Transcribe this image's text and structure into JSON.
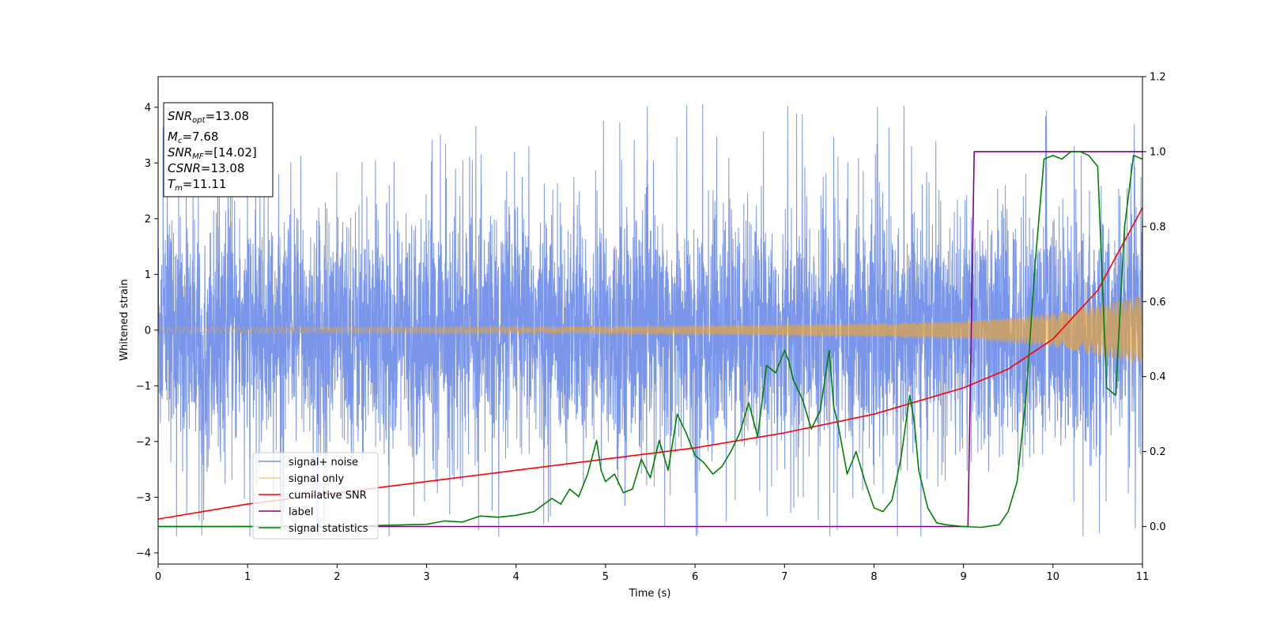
{
  "chart_data": {
    "type": "line",
    "xlabel": "Time (s)",
    "ylabel": "Whitened strain",
    "xlim": [
      0,
      11
    ],
    "ylim": [
      -4.2,
      4.55
    ],
    "ylim_right": [
      -0.1,
      1.2
    ],
    "grid": false,
    "legend_position": "lower-left",
    "x_ticks": [
      "0",
      "1",
      "2",
      "3",
      "4",
      "5",
      "6",
      "7",
      "8",
      "9",
      "10",
      "11"
    ],
    "y_ticks_left": [
      "4",
      "3",
      "2",
      "1",
      "0",
      "−1",
      "−2",
      "−3",
      "−4"
    ],
    "y_ticks_right": [
      "1.2",
      "1.0",
      "0.8",
      "0.6",
      "0.4",
      "0.2",
      "0.0"
    ],
    "annotation": {
      "snr_opt": {
        "base": "SNR",
        "sub": "opt",
        "value": "=13.08"
      },
      "mc": {
        "base": "M",
        "sub": "c",
        "value": "=7.68"
      },
      "snr_mf": {
        "base": "SNR",
        "sub": "MF",
        "value": "=[14.02]"
      },
      "csnr": {
        "base": "CSNR",
        "value": "=13.08"
      },
      "tm": {
        "base": "T",
        "sub": "m",
        "value": "=11.11"
      }
    },
    "series": [
      {
        "name": "signal+ noise",
        "color": "#4169e1",
        "axis": "left",
        "kind": "noise",
        "description_values": {
          "std": 1.0,
          "range": [
            -3.7,
            4.2
          ]
        }
      },
      {
        "name": "signal only",
        "color": "#f5a623",
        "axis": "left",
        "kind": "chirp",
        "amplitude_x": [
          0,
          2,
          4,
          6,
          8,
          9,
          10,
          11
        ],
        "amplitude_y": [
          0.05,
          0.055,
          0.06,
          0.08,
          0.12,
          0.16,
          0.3,
          0.62
        ]
      },
      {
        "name": "cumilative SNR",
        "color": "#ff0000",
        "axis": "right",
        "x": [
          0,
          0.5,
          1,
          2,
          3,
          4,
          5,
          6,
          7,
          8,
          9,
          9.5,
          10,
          10.5,
          11
        ],
        "y": [
          0.02,
          0.04,
          0.06,
          0.09,
          0.12,
          0.15,
          0.18,
          0.21,
          0.25,
          0.3,
          0.37,
          0.42,
          0.5,
          0.63,
          0.85
        ]
      },
      {
        "name": "label",
        "color": "#800080",
        "axis": "right",
        "x": [
          0,
          9.05,
          9.12,
          11
        ],
        "y": [
          0,
          0,
          1,
          1
        ]
      },
      {
        "name": "signal statistics",
        "color": "#008000",
        "axis": "right",
        "x": [
          0,
          1,
          2,
          2.5,
          3,
          3.2,
          3.4,
          3.6,
          3.8,
          4,
          4.2,
          4.4,
          4.5,
          4.6,
          4.7,
          4.8,
          4.9,
          4.95,
          5,
          5.1,
          5.2,
          5.3,
          5.4,
          5.5,
          5.6,
          5.7,
          5.8,
          5.9,
          6,
          6.1,
          6.2,
          6.3,
          6.4,
          6.5,
          6.6,
          6.7,
          6.8,
          6.9,
          7,
          7.05,
          7.1,
          7.2,
          7.3,
          7.4,
          7.5,
          7.55,
          7.6,
          7.7,
          7.8,
          7.9,
          8,
          8.1,
          8.2,
          8.3,
          8.4,
          8.45,
          8.5,
          8.6,
          8.7,
          8.8,
          9,
          9.2,
          9.4,
          9.5,
          9.6,
          9.7,
          9.8,
          9.9,
          10,
          10.1,
          10.2,
          10.3,
          10.4,
          10.5,
          10.6,
          10.7,
          10.8,
          10.9,
          11
        ],
        "y": [
          0,
          0,
          0,
          0.003,
          0.006,
          0.015,
          0.012,
          0.028,
          0.025,
          0.03,
          0.04,
          0.075,
          0.06,
          0.1,
          0.08,
          0.14,
          0.23,
          0.15,
          0.12,
          0.14,
          0.09,
          0.1,
          0.18,
          0.13,
          0.23,
          0.15,
          0.3,
          0.25,
          0.19,
          0.17,
          0.14,
          0.16,
          0.2,
          0.25,
          0.33,
          0.24,
          0.43,
          0.41,
          0.47,
          0.44,
          0.39,
          0.34,
          0.26,
          0.31,
          0.47,
          0.32,
          0.27,
          0.14,
          0.2,
          0.12,
          0.05,
          0.04,
          0.07,
          0.18,
          0.35,
          0.28,
          0.15,
          0.05,
          0.01,
          0.005,
          0,
          -0.002,
          0.005,
          0.04,
          0.12,
          0.35,
          0.7,
          0.98,
          0.99,
          0.98,
          1,
          1,
          0.99,
          0.96,
          0.37,
          0.35,
          0.8,
          0.99,
          0.98
        ]
      }
    ]
  }
}
